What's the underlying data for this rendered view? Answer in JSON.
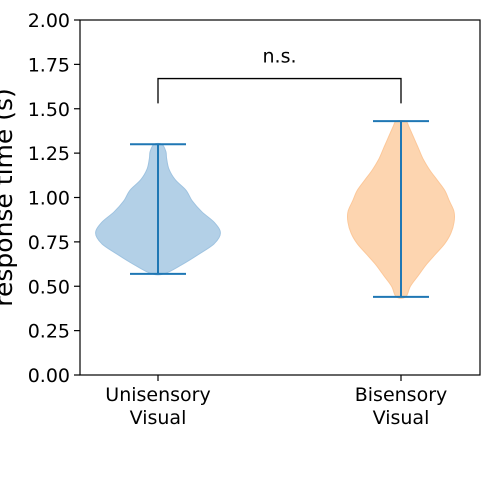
{
  "chart_data": {
    "type": "violin",
    "title": "",
    "xlabel": "",
    "ylabel": "response time (s)",
    "ylim": [
      0,
      2
    ],
    "yticks": [
      0,
      0.25,
      0.5,
      0.75,
      1.0,
      1.25,
      1.5,
      1.75,
      2.0
    ],
    "ytick_labels": [
      "0.00",
      "0.25",
      "0.50",
      "0.75",
      "1.00",
      "1.25",
      "1.50",
      "1.75",
      "2.00"
    ],
    "categories": [
      {
        "label_line1": "Unisensory",
        "label_line2": "Visual"
      },
      {
        "label_line1": "Bisensory",
        "label_line2": "Visual"
      }
    ],
    "series": [
      {
        "name": "Unisensory Visual",
        "min": 0.57,
        "max": 1.3,
        "fill_color": "#b3d0e7",
        "edge_color": "#9fc3e0",
        "line_color": "#1f77b4",
        "density_profile": [
          [
            0.57,
            0.08
          ],
          [
            0.62,
            0.3
          ],
          [
            0.68,
            0.52
          ],
          [
            0.74,
            0.72
          ],
          [
            0.8,
            0.8
          ],
          [
            0.86,
            0.72
          ],
          [
            0.92,
            0.56
          ],
          [
            0.98,
            0.44
          ],
          [
            1.04,
            0.36
          ],
          [
            1.1,
            0.22
          ],
          [
            1.16,
            0.14
          ],
          [
            1.22,
            0.11
          ],
          [
            1.26,
            0.1
          ],
          [
            1.3,
            0.05
          ]
        ]
      },
      {
        "name": "Bisensory Visual",
        "min": 0.44,
        "max": 1.43,
        "fill_color": "#fdd5b0",
        "edge_color": "#fcc89a",
        "line_color": "#1f77b4",
        "density_profile": [
          [
            0.44,
            0.06
          ],
          [
            0.5,
            0.12
          ],
          [
            0.56,
            0.22
          ],
          [
            0.62,
            0.32
          ],
          [
            0.68,
            0.44
          ],
          [
            0.74,
            0.56
          ],
          [
            0.8,
            0.64
          ],
          [
            0.86,
            0.68
          ],
          [
            0.92,
            0.68
          ],
          [
            0.98,
            0.62
          ],
          [
            1.04,
            0.56
          ],
          [
            1.1,
            0.46
          ],
          [
            1.16,
            0.36
          ],
          [
            1.22,
            0.28
          ],
          [
            1.28,
            0.22
          ],
          [
            1.34,
            0.16
          ],
          [
            1.4,
            0.1
          ],
          [
            1.43,
            0.06
          ]
        ]
      }
    ],
    "annotation": {
      "text": "n.s.",
      "between": [
        0,
        1
      ],
      "y": 1.67,
      "drop_to": 1.53
    }
  }
}
